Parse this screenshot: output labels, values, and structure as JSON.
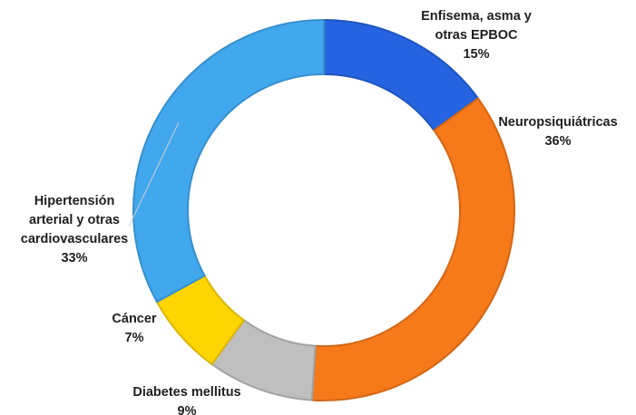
{
  "chart_data": {
    "type": "pie",
    "variant": "donut",
    "title": "",
    "start_angle_deg": 0,
    "direction": "clockwise",
    "slices": [
      {
        "label_lines": [
          "Enfisema, asma y",
          "otras EPBOC"
        ],
        "value": 15,
        "value_label": "15%",
        "color": "#2563E0"
      },
      {
        "label_lines": [
          "Neuropsiquiátricas"
        ],
        "value": 36,
        "value_label": "36%",
        "color": "#F6791A"
      },
      {
        "label_lines": [
          "Diabetes mellitus"
        ],
        "value": 9,
        "value_label": "9%",
        "color": "#BFBFBF"
      },
      {
        "label_lines": [
          "Cáncer"
        ],
        "value": 7,
        "value_label": "7%",
        "color": "#FFD500"
      },
      {
        "label_lines": [
          "Hipertensión",
          "arterial y otras",
          "cardiovasculares"
        ],
        "value": 33,
        "value_label": "33%",
        "color": "#41A8EE"
      }
    ]
  }
}
